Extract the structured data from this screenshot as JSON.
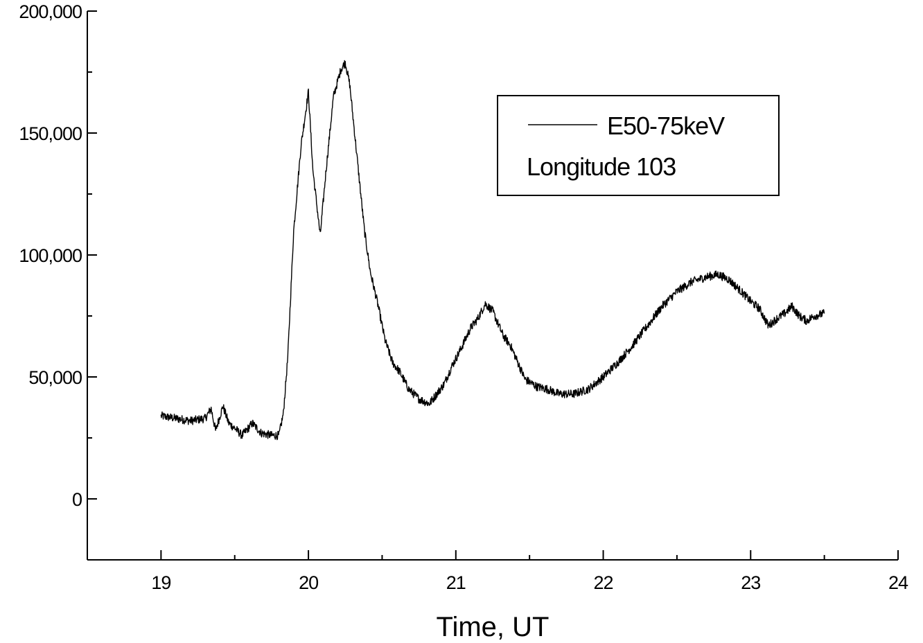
{
  "chart_data": {
    "type": "line",
    "title": "",
    "xlabel": "Time, UT",
    "ylabel": "",
    "xlim": [
      18.5,
      24
    ],
    "ylim": [
      -25000,
      200000
    ],
    "xticks": [
      19,
      20,
      21,
      22,
      23,
      24
    ],
    "xtick_labels": [
      "19",
      "20",
      "21",
      "22",
      "23",
      "24"
    ],
    "yticks": [
      0,
      50000,
      100000,
      150000,
      200000
    ],
    "ytick_labels": [
      "0",
      "50,000",
      "100,000",
      "150,000",
      "200,000"
    ],
    "grid": false,
    "legend": {
      "placement": "top-right",
      "entries": [
        "E50-75keV",
        "Longitude 103"
      ]
    },
    "series": [
      {
        "name": "E50-75keV",
        "color": "#000000",
        "x": [
          19.0,
          19.1,
          19.2,
          19.3,
          19.34,
          19.37,
          19.42,
          19.46,
          19.5,
          19.55,
          19.62,
          19.68,
          19.75,
          19.8,
          19.83,
          19.86,
          19.9,
          19.95,
          20.0,
          20.03,
          20.08,
          20.12,
          20.17,
          20.22,
          20.25,
          20.28,
          20.33,
          20.38,
          20.42,
          20.47,
          20.52,
          20.57,
          20.62,
          20.68,
          20.75,
          20.82,
          20.87,
          20.92,
          20.97,
          21.03,
          21.1,
          21.15,
          21.2,
          21.25,
          21.32,
          21.37,
          21.42,
          21.47,
          21.55,
          21.62,
          21.7,
          21.8,
          21.9,
          22.0,
          22.1,
          22.2,
          22.3,
          22.4,
          22.5,
          22.6,
          22.7,
          22.78,
          22.85,
          22.92,
          23.0,
          23.06,
          23.12,
          23.18,
          23.23,
          23.28,
          23.33,
          23.38,
          23.43,
          23.5
        ],
        "values": [
          34000,
          33000,
          32000,
          33000,
          37000,
          28000,
          38000,
          31000,
          29000,
          26000,
          31000,
          27000,
          26000,
          26000,
          35000,
          58000,
          110000,
          145000,
          167000,
          135000,
          108000,
          135000,
          165000,
          176000,
          179000,
          170000,
          140000,
          110000,
          93000,
          80000,
          65000,
          56000,
          52000,
          45000,
          41000,
          39000,
          43000,
          47000,
          54000,
          61000,
          70000,
          74000,
          80000,
          77000,
          67000,
          63000,
          56000,
          49000,
          46000,
          45000,
          43000,
          43000,
          45000,
          50000,
          56000,
          63000,
          71000,
          79000,
          85000,
          89000,
          91000,
          92000,
          90000,
          86000,
          81000,
          78000,
          71000,
          74000,
          76000,
          79000,
          75000,
          73000,
          75000,
          76000
        ]
      }
    ]
  }
}
